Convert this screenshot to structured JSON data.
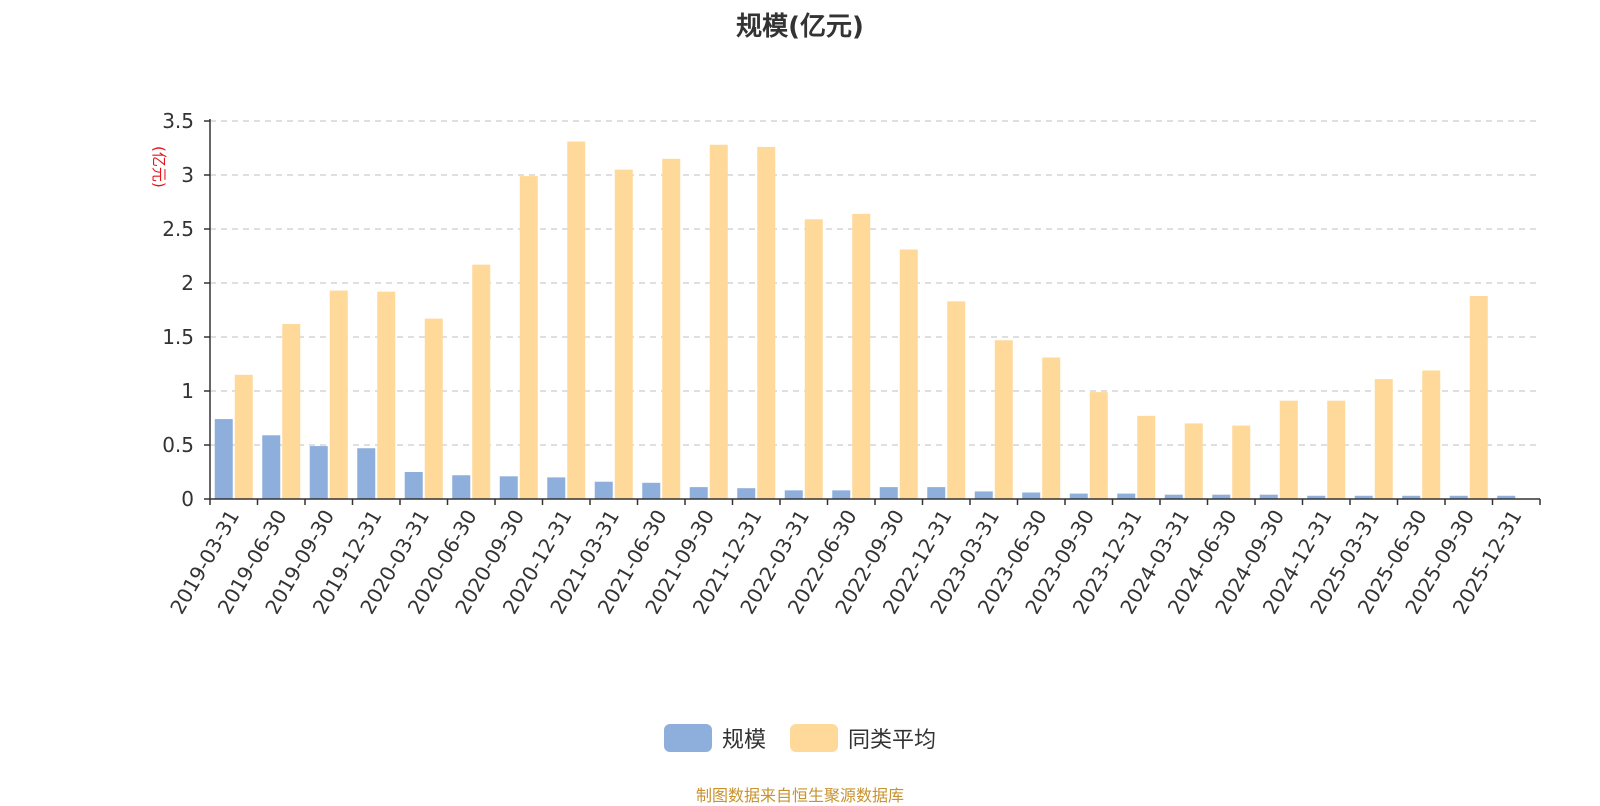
{
  "chart_data": {
    "type": "bar",
    "title": "规模(亿元)",
    "unit_label": "(亿元)",
    "categories": [
      "2019-03-31",
      "2019-06-30",
      "2019-09-30",
      "2019-12-31",
      "2020-03-31",
      "2020-06-30",
      "2020-09-30",
      "2020-12-31",
      "2021-03-31",
      "2021-06-30",
      "2021-09-30",
      "2021-12-31",
      "2022-03-31",
      "2022-06-30",
      "2022-09-30",
      "2022-12-31",
      "2023-03-31",
      "2023-06-30",
      "2023-09-30",
      "2023-12-31",
      "2024-03-31",
      "2024-06-30",
      "2024-09-30",
      "2024-12-31",
      "2025-03-31",
      "2025-06-30",
      "2025-09-30",
      "2025-12-31"
    ],
    "series": [
      {
        "name": "规模",
        "color": "#8eaedb",
        "values": [
          0.74,
          0.59,
          0.49,
          0.47,
          0.25,
          0.22,
          0.21,
          0.2,
          0.16,
          0.15,
          0.11,
          0.1,
          0.08,
          0.08,
          0.11,
          0.11,
          0.07,
          0.06,
          0.05,
          0.05,
          0.04,
          0.04,
          0.04,
          0.03,
          0.03,
          0.03,
          0.03,
          0.03
        ]
      },
      {
        "name": "同类平均",
        "color": "#ffd99a",
        "values": [
          1.15,
          1.62,
          1.93,
          1.92,
          1.67,
          2.17,
          2.99,
          3.31,
          3.05,
          3.15,
          3.28,
          3.26,
          2.59,
          2.64,
          2.31,
          1.83,
          1.47,
          1.31,
          0.99,
          0.77,
          0.7,
          0.68,
          0.91,
          0.91,
          1.11,
          1.19,
          1.88,
          null
        ]
      }
    ],
    "yticks": [
      "0",
      "0.5",
      "1",
      "1.5",
      "2",
      "2.5",
      "3",
      "3.5"
    ],
    "ylim": [
      0,
      3.5
    ],
    "grid": true,
    "legend_position": "bottom-center"
  },
  "source_note": "制图数据来自恒生聚源数据库"
}
